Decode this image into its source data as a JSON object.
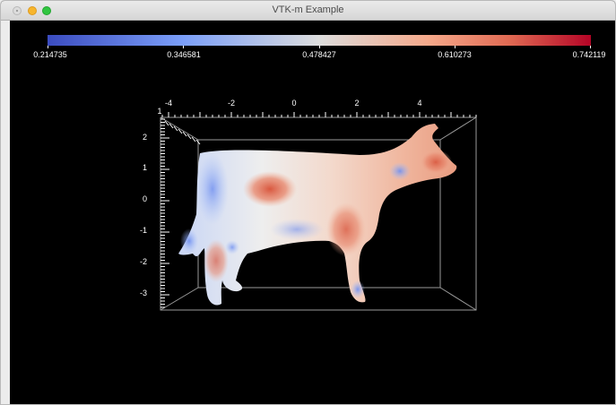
{
  "window": {
    "title": "VTK-m Example"
  },
  "colorbar": {
    "labels": [
      "0.214735",
      "0.346581",
      "0.478427",
      "0.610273",
      "0.742119"
    ],
    "range": [
      0.214735,
      0.742119
    ],
    "colormap": [
      "#3b4cc0",
      "#dddddd",
      "#b40426"
    ]
  },
  "axes": {
    "x_ticks": [
      "-4",
      "-2",
      "0",
      "2",
      "4"
    ],
    "y_ticks": [
      "2",
      "1",
      "0",
      "-1",
      "-2",
      "-3"
    ],
    "z_tick": "1"
  },
  "colors": {
    "background": "#000000",
    "axis": "#ffffff",
    "box": "#9a9a9a"
  },
  "model": {
    "name_icon": "cow-mesh"
  }
}
